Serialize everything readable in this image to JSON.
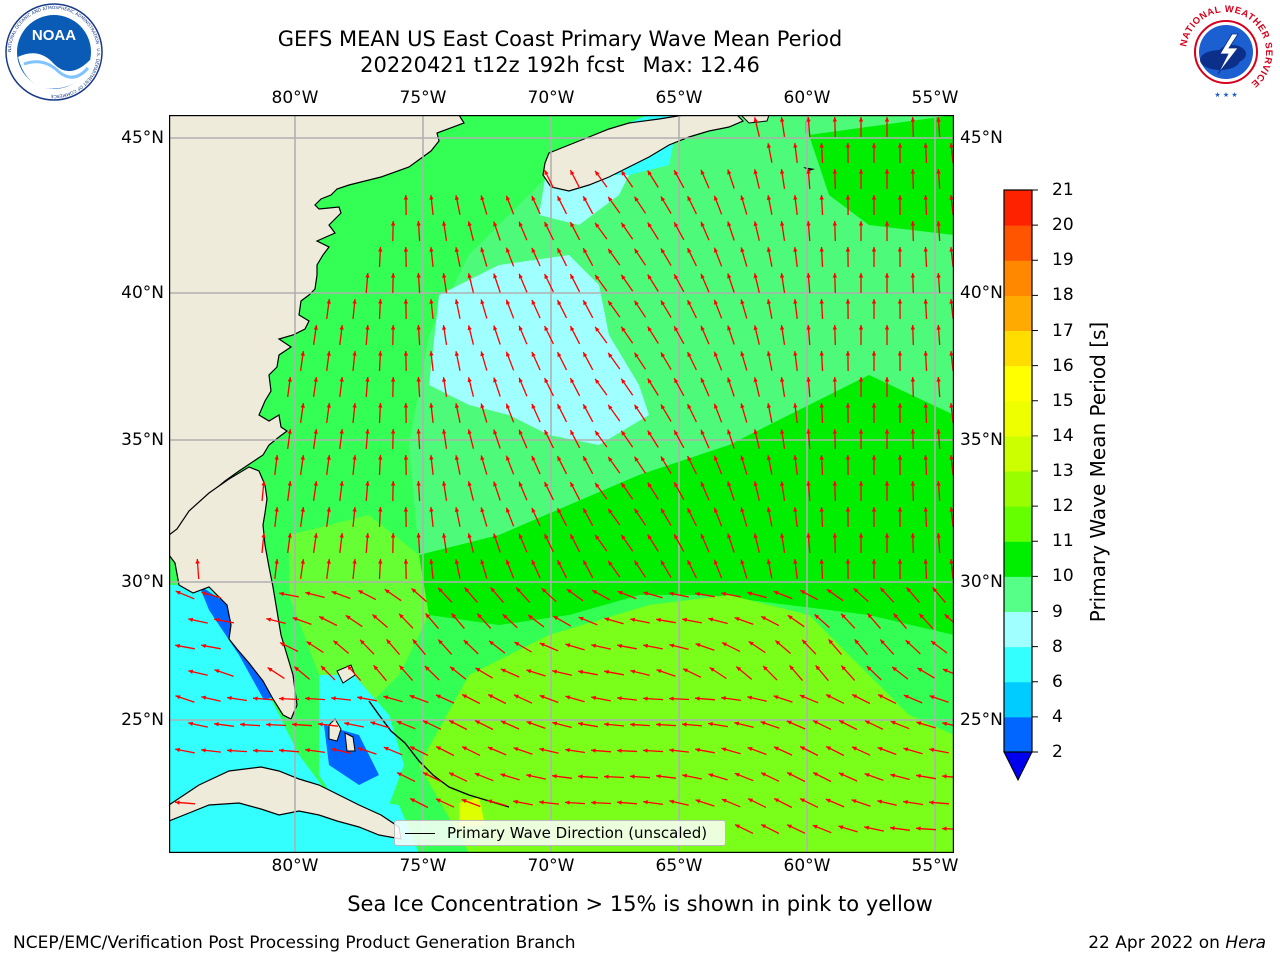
{
  "header": {
    "title_line1": "GEFS MEAN US East Coast Primary Wave Mean Period",
    "title_line2": "20220421 t12z 192h fcst",
    "max_text": "Max: 12.46"
  },
  "logos": {
    "noaa": "NOAA",
    "noaa_ring_text": "NATIONAL OCEANIC AND ATMOSPHERIC ADMINISTRATION · U.S. DEPARTMENT OF COMMERCE",
    "nws_ring_text": "NATIONAL WEATHER SERVICE"
  },
  "map": {
    "lon_labels": [
      "80°W",
      "75°W",
      "70°W",
      "65°W",
      "60°W",
      "55°W"
    ],
    "lat_labels": [
      "45°N",
      "40°N",
      "35°N",
      "30°N",
      "25°N"
    ],
    "legend_label": "Primary Wave Direction (unscaled)",
    "land_color": "#efebdb",
    "arrow_color": "#ff0000",
    "grid_color": "#b0b0b0"
  },
  "colorbar": {
    "title": "Primary Wave Mean Period [s]",
    "tick_labels": [
      "2",
      "4",
      "6",
      "8",
      "9",
      "10",
      "11",
      "12",
      "13",
      "14",
      "15",
      "16",
      "17",
      "18",
      "19",
      "20",
      "21"
    ],
    "colors": [
      "#0066ff",
      "#00ccff",
      "#33ffff",
      "#a0ffff",
      "#55ff88",
      "#00ee00",
      "#66ff00",
      "#99ff00",
      "#ccff00",
      "#eeff00",
      "#ffff00",
      "#ffdd00",
      "#ffaa00",
      "#ff8800",
      "#ff5500",
      "#ff2200",
      "#ff0000"
    ],
    "under_color": "#0000ee"
  },
  "footer": {
    "subtitle": "Sea Ice Concentration > 15% is shown in pink to yellow",
    "credit": "NCEP/EMC/Verification Post Processing Product Generation Branch",
    "date": "22 Apr 2022 on",
    "machine": "Hera"
  }
}
